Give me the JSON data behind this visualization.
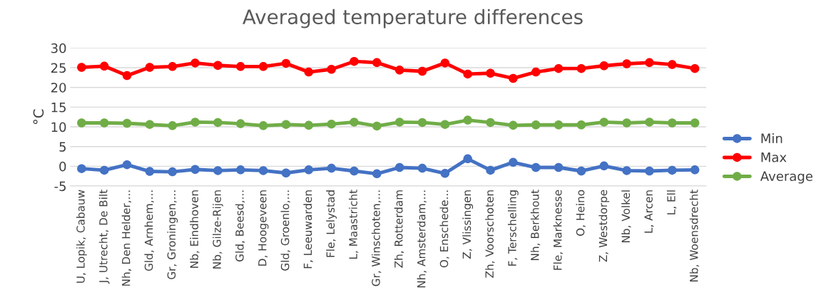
{
  "chart_data": {
    "type": "line",
    "title": "Averaged temperature differences",
    "ylabel": "°C",
    "categories": [
      "U, Lopik, Cabauw",
      "J, Utrecht, De Bilt",
      "Nh, Den Helder,...",
      "Gld, Arnhem,...",
      "Gr, Groningen,...",
      "Nb, Eindhoven",
      "Nb, Gilze-Rijen",
      "Gld, Beesd,...",
      "D, Hoogeveen",
      "Gld, Groenlo,...",
      "F, Leeuwarden",
      "Fle, Lelystad",
      "L, Maastricht",
      "Gr, Winschoten,...",
      "Zh, Rotterdam",
      "Nh, Amsterdam,...",
      "O, Enschede...",
      "Z, Vlissingen",
      "Zh, Voorschoten",
      "F, Terschelling",
      "Nh, Berkhout",
      "Fle, Marknesse",
      "O, Heino",
      "Z, Westdorpe",
      "Nb, Volkel",
      "L, Arcen",
      "L, Ell",
      "Nb, Woensdrecht"
    ],
    "series": [
      {
        "name": "Min",
        "color": "#4472c4",
        "values": [
          -0.6,
          -1.0,
          0.4,
          -1.3,
          -1.4,
          -0.8,
          -1.1,
          -0.9,
          -1.1,
          -1.7,
          -0.9,
          -0.5,
          -1.2,
          -1.9,
          -0.3,
          -0.5,
          -1.8,
          1.9,
          -1.0,
          1.0,
          -0.3,
          -0.3,
          -1.2,
          0.1,
          -1.1,
          -1.2,
          -1.0,
          -0.9
        ]
      },
      {
        "name": "Max",
        "color": "#ff0000",
        "values": [
          25.1,
          25.4,
          23.0,
          25.1,
          25.3,
          26.2,
          25.6,
          25.3,
          25.3,
          26.1,
          23.9,
          24.6,
          26.6,
          26.3,
          24.4,
          24.1,
          26.2,
          23.4,
          23.6,
          22.3,
          23.9,
          24.8,
          24.8,
          25.5,
          26.0,
          26.3,
          25.8,
          24.8
        ]
      },
      {
        "name": "Average",
        "color": "#70ad47",
        "values": [
          11.0,
          11.0,
          10.9,
          10.6,
          10.3,
          11.2,
          11.1,
          10.8,
          10.3,
          10.6,
          10.4,
          10.7,
          11.2,
          10.2,
          11.2,
          11.1,
          10.6,
          11.7,
          11.1,
          10.4,
          10.5,
          10.5,
          10.5,
          11.2,
          11.0,
          11.2,
          11.0,
          11.0
        ]
      }
    ],
    "ylim": [
      -5,
      30
    ],
    "yticks": [
      -5,
      0,
      5,
      10,
      15,
      20,
      25,
      30
    ],
    "grid": "y",
    "legend": "right",
    "marker": "circle",
    "line_style": "solid"
  }
}
